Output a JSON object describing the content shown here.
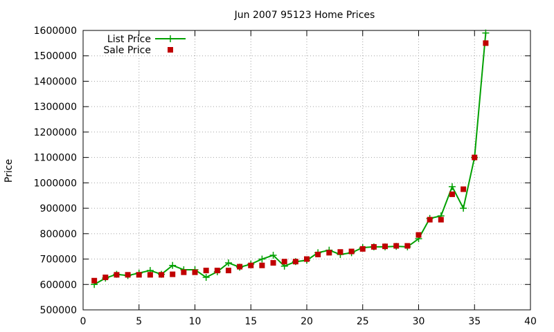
{
  "chart_data": {
    "type": "line",
    "title": "Jun 2007 95123 Home Prices",
    "xlabel": "",
    "ylabel": "Price",
    "xlim": [
      0,
      40
    ],
    "ylim": [
      500000,
      1600000
    ],
    "xticks": [
      0,
      5,
      10,
      15,
      20,
      25,
      30,
      35,
      40
    ],
    "yticks": [
      500000,
      600000,
      700000,
      800000,
      900000,
      1000000,
      1100000,
      1200000,
      1300000,
      1400000,
      1500000,
      1600000
    ],
    "grid": true,
    "legend_position": "top-left",
    "series": [
      {
        "name": "List Price",
        "style": "line with cross markers",
        "color": "#00a000",
        "x": [
          1,
          2,
          3,
          4,
          5,
          6,
          7,
          8,
          9,
          10,
          11,
          12,
          13,
          14,
          15,
          16,
          17,
          18,
          19,
          20,
          21,
          22,
          23,
          24,
          25,
          26,
          27,
          28,
          29,
          30,
          31,
          32,
          33,
          34,
          35,
          36
        ],
        "y": [
          600000,
          625000,
          640000,
          635000,
          645000,
          655000,
          640000,
          675000,
          658000,
          658000,
          628000,
          650000,
          685000,
          668000,
          680000,
          700000,
          715000,
          672000,
          690000,
          695000,
          725000,
          735000,
          718000,
          725000,
          745000,
          748000,
          748000,
          750000,
          748000,
          780000,
          860000,
          870000,
          985000,
          900000,
          1100000,
          1590000
        ]
      },
      {
        "name": "Sale Price",
        "style": "square markers",
        "color": "#c00000",
        "x": [
          1,
          2,
          3,
          4,
          5,
          6,
          7,
          8,
          9,
          10,
          11,
          12,
          13,
          14,
          15,
          16,
          17,
          18,
          19,
          20,
          21,
          22,
          23,
          24,
          25,
          26,
          27,
          28,
          29,
          30,
          31,
          32,
          33,
          34,
          35,
          36
        ],
        "y": [
          615000,
          628000,
          638000,
          638000,
          638000,
          638000,
          638000,
          640000,
          648000,
          648000,
          655000,
          655000,
          655000,
          670000,
          675000,
          675000,
          685000,
          690000,
          690000,
          700000,
          718000,
          725000,
          728000,
          730000,
          740000,
          748000,
          750000,
          752000,
          752000,
          795000,
          855000,
          855000,
          955000,
          975000,
          1100000,
          1550000
        ]
      }
    ]
  }
}
